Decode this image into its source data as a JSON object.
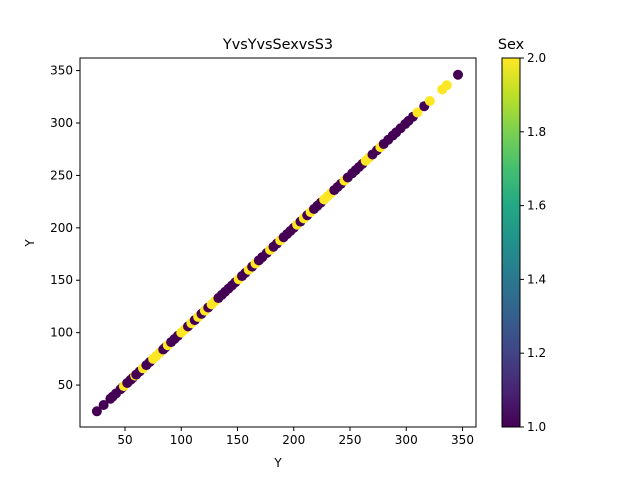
{
  "chart_data": {
    "type": "scatter",
    "title": "YvsYvsSexvsS3",
    "xlabel": "Y",
    "ylabel": "Y",
    "xlim": [
      10,
      362
    ],
    "ylim": [
      10,
      362
    ],
    "xticks": [
      50,
      100,
      150,
      200,
      250,
      300,
      350
    ],
    "yticks": [
      50,
      100,
      150,
      200,
      250,
      300,
      350
    ],
    "xtick_labels": [
      "50",
      "100",
      "150",
      "200",
      "250",
      "300",
      "350"
    ],
    "ytick_labels": [
      "50",
      "100",
      "150",
      "200",
      "250",
      "300",
      "350"
    ],
    "grid": false,
    "colorbar": {
      "label": "Sex",
      "range": [
        1.0,
        2.0
      ],
      "ticks": [
        1.0,
        1.2,
        1.4,
        1.6,
        1.8,
        2.0
      ],
      "tick_labels": [
        "1.0",
        "1.2",
        "1.4",
        "1.6",
        "1.8",
        "2.0"
      ],
      "colormap": "viridis"
    },
    "colors": {
      "sex_1": "#440154",
      "sex_2": "#fde725"
    },
    "points": [
      {
        "x": 25,
        "y": 25,
        "c": 1
      },
      {
        "x": 31,
        "y": 31,
        "c": 1
      },
      {
        "x": 37,
        "y": 37,
        "c": 1
      },
      {
        "x": 39,
        "y": 39,
        "c": 1
      },
      {
        "x": 42,
        "y": 42,
        "c": 1
      },
      {
        "x": 46,
        "y": 46,
        "c": 1
      },
      {
        "x": 48,
        "y": 48,
        "c": 1
      },
      {
        "x": 49,
        "y": 49,
        "c": 2
      },
      {
        "x": 52,
        "y": 52,
        "c": 1
      },
      {
        "x": 55,
        "y": 55,
        "c": 1
      },
      {
        "x": 57,
        "y": 57,
        "c": 1
      },
      {
        "x": 59,
        "y": 59,
        "c": 2
      },
      {
        "x": 60,
        "y": 60,
        "c": 1
      },
      {
        "x": 63,
        "y": 63,
        "c": 1
      },
      {
        "x": 66,
        "y": 66,
        "c": 2
      },
      {
        "x": 69,
        "y": 69,
        "c": 1
      },
      {
        "x": 72,
        "y": 72,
        "c": 1
      },
      {
        "x": 75,
        "y": 75,
        "c": 2
      },
      {
        "x": 78,
        "y": 78,
        "c": 2
      },
      {
        "x": 81,
        "y": 81,
        "c": 2
      },
      {
        "x": 84,
        "y": 84,
        "c": 1
      },
      {
        "x": 86,
        "y": 86,
        "c": 1
      },
      {
        "x": 88,
        "y": 88,
        "c": 2
      },
      {
        "x": 91,
        "y": 91,
        "c": 1
      },
      {
        "x": 94,
        "y": 94,
        "c": 1
      },
      {
        "x": 97,
        "y": 97,
        "c": 1
      },
      {
        "x": 100,
        "y": 100,
        "c": 2
      },
      {
        "x": 103,
        "y": 103,
        "c": 2
      },
      {
        "x": 106,
        "y": 106,
        "c": 1
      },
      {
        "x": 109,
        "y": 109,
        "c": 2
      },
      {
        "x": 112,
        "y": 112,
        "c": 1
      },
      {
        "x": 115,
        "y": 115,
        "c": 2
      },
      {
        "x": 118,
        "y": 118,
        "c": 1
      },
      {
        "x": 121,
        "y": 121,
        "c": 2
      },
      {
        "x": 124,
        "y": 124,
        "c": 1
      },
      {
        "x": 127,
        "y": 127,
        "c": 2
      },
      {
        "x": 130,
        "y": 130,
        "c": 2
      },
      {
        "x": 133,
        "y": 133,
        "c": 1
      },
      {
        "x": 136,
        "y": 136,
        "c": 1
      },
      {
        "x": 139,
        "y": 139,
        "c": 1
      },
      {
        "x": 142,
        "y": 142,
        "c": 1
      },
      {
        "x": 145,
        "y": 145,
        "c": 1
      },
      {
        "x": 148,
        "y": 148,
        "c": 1
      },
      {
        "x": 151,
        "y": 151,
        "c": 2
      },
      {
        "x": 154,
        "y": 154,
        "c": 1
      },
      {
        "x": 157,
        "y": 157,
        "c": 1
      },
      {
        "x": 160,
        "y": 160,
        "c": 2
      },
      {
        "x": 163,
        "y": 163,
        "c": 1
      },
      {
        "x": 166,
        "y": 166,
        "c": 2
      },
      {
        "x": 169,
        "y": 169,
        "c": 1
      },
      {
        "x": 172,
        "y": 172,
        "c": 1
      },
      {
        "x": 176,
        "y": 176,
        "c": 1
      },
      {
        "x": 179,
        "y": 179,
        "c": 2
      },
      {
        "x": 182,
        "y": 182,
        "c": 1
      },
      {
        "x": 185,
        "y": 185,
        "c": 1
      },
      {
        "x": 188,
        "y": 188,
        "c": 2
      },
      {
        "x": 191,
        "y": 191,
        "c": 1
      },
      {
        "x": 194,
        "y": 194,
        "c": 1
      },
      {
        "x": 197,
        "y": 197,
        "c": 1
      },
      {
        "x": 200,
        "y": 200,
        "c": 1
      },
      {
        "x": 203,
        "y": 203,
        "c": 2
      },
      {
        "x": 206,
        "y": 206,
        "c": 1
      },
      {
        "x": 209,
        "y": 209,
        "c": 2
      },
      {
        "x": 212,
        "y": 212,
        "c": 1
      },
      {
        "x": 215,
        "y": 215,
        "c": 2
      },
      {
        "x": 218,
        "y": 218,
        "c": 1
      },
      {
        "x": 221,
        "y": 221,
        "c": 1
      },
      {
        "x": 224,
        "y": 224,
        "c": 1
      },
      {
        "x": 227,
        "y": 227,
        "c": 2
      },
      {
        "x": 230,
        "y": 230,
        "c": 2
      },
      {
        "x": 233,
        "y": 233,
        "c": 2
      },
      {
        "x": 236,
        "y": 236,
        "c": 1
      },
      {
        "x": 239,
        "y": 239,
        "c": 1
      },
      {
        "x": 242,
        "y": 242,
        "c": 1
      },
      {
        "x": 245,
        "y": 245,
        "c": 2
      },
      {
        "x": 248,
        "y": 248,
        "c": 1
      },
      {
        "x": 252,
        "y": 252,
        "c": 1
      },
      {
        "x": 255,
        "y": 255,
        "c": 1
      },
      {
        "x": 258,
        "y": 258,
        "c": 1
      },
      {
        "x": 261,
        "y": 261,
        "c": 1
      },
      {
        "x": 264,
        "y": 264,
        "c": 2
      },
      {
        "x": 267,
        "y": 267,
        "c": 2
      },
      {
        "x": 270,
        "y": 270,
        "c": 1
      },
      {
        "x": 274,
        "y": 274,
        "c": 1
      },
      {
        "x": 277,
        "y": 277,
        "c": 2
      },
      {
        "x": 280,
        "y": 280,
        "c": 1
      },
      {
        "x": 284,
        "y": 284,
        "c": 1
      },
      {
        "x": 288,
        "y": 288,
        "c": 1
      },
      {
        "x": 291,
        "y": 291,
        "c": 1
      },
      {
        "x": 295,
        "y": 295,
        "c": 1
      },
      {
        "x": 299,
        "y": 299,
        "c": 1
      },
      {
        "x": 302,
        "y": 302,
        "c": 1
      },
      {
        "x": 306,
        "y": 306,
        "c": 1
      },
      {
        "x": 310,
        "y": 310,
        "c": 2
      },
      {
        "x": 316,
        "y": 316,
        "c": 1
      },
      {
        "x": 321,
        "y": 321,
        "c": 2
      },
      {
        "x": 332,
        "y": 332,
        "c": 2
      },
      {
        "x": 336,
        "y": 336,
        "c": 2
      },
      {
        "x": 346,
        "y": 346,
        "c": 1
      }
    ]
  }
}
